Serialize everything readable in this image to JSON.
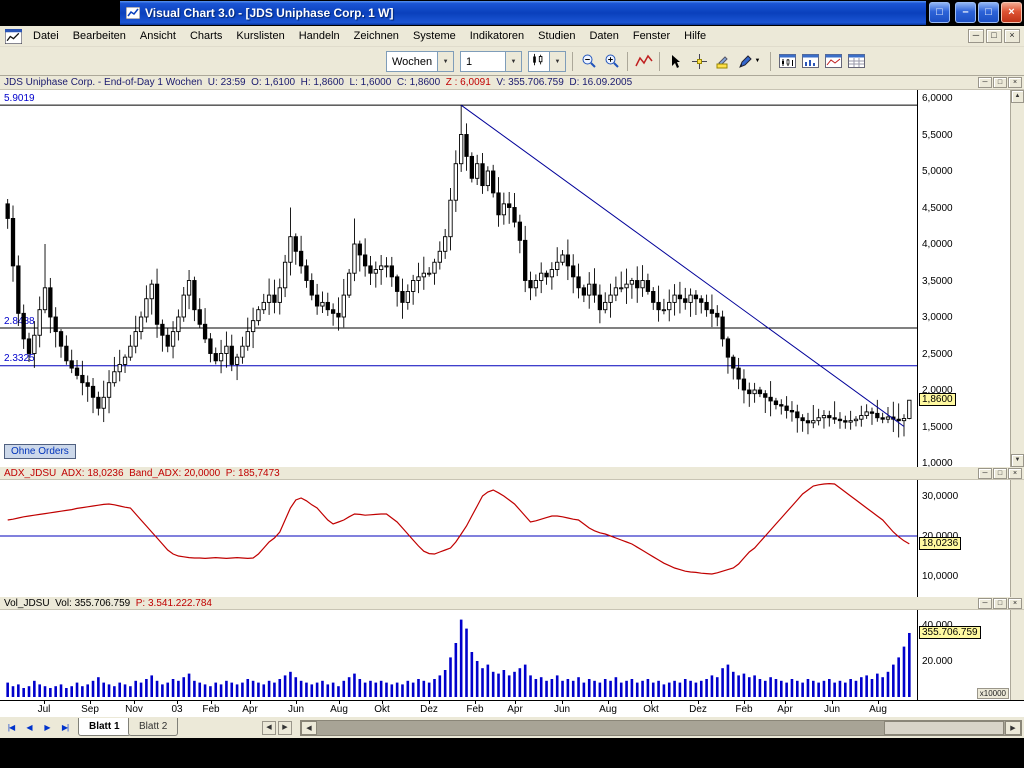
{
  "window": {
    "title": "Visual Chart  3.0 - [JDS Uniphase Corp. 1 W]"
  },
  "icons": {
    "min": "–",
    "max": "□",
    "close": "×",
    "restore": "□",
    "mdi_min": "─",
    "mdi_restore": "□",
    "mdi_close": "×",
    "mini_min": "─",
    "mini_max": "□",
    "mini_close": "×",
    "nav_first": "|◀",
    "nav_prev": "◀",
    "nav_next": "▶",
    "nav_last": "▶|",
    "up": "▲",
    "down": "▼",
    "left": "◀",
    "right": "▶",
    "combo_arrow": "▼"
  },
  "menu": {
    "items": [
      "Datei",
      "Bearbeiten",
      "Ansicht",
      "Charts",
      "Kurslisten",
      "Handeln",
      "Zeichnen",
      "Systeme",
      "Indikatoren",
      "Studien",
      "Daten",
      "Fenster",
      "Hilfe"
    ]
  },
  "toolbar": {
    "period": "Wochen",
    "compression": "1"
  },
  "chart": {
    "info_pre": "JDS Uniphase Corp. - End-of-Day 1 Wochen  U: 23:59  O: 1,6100  H: 1,8600  L: 1,6000  C: 1,8600  ",
    "info_z": "Z : 6,0091",
    "info_post": "  V: 355.706.759  D: 16.09.2005",
    "price_axis": [
      "6,0000",
      "5,5000",
      "5,0000",
      "4,5000",
      "4,0000",
      "3,5000",
      "3,0000",
      "2,5000",
      "2,0000",
      "1,5000",
      "1,0000"
    ],
    "price_tag": "1,8600",
    "level_labels": [
      "5.9019",
      "2.8488",
      "2.3325"
    ],
    "no_orders": "Ohne Orders",
    "adx_header": "ADX_JDSU  ADX: 18,0236  Band_ADX: 20,0000  P: 185,7473",
    "adx_axis": [
      "30,0000",
      "20,0000",
      "10,0000"
    ],
    "adx_tag": "18,0236",
    "vol_header": "Vol_JDSU  Vol: 355.706.759  ",
    "vol_header_p": "P: 3.541.222.784",
    "vol_axis": [
      "40.000",
      "20.000"
    ],
    "vol_tag": "355.706.759",
    "vol_multiplier": "x10000"
  },
  "tabs": [
    {
      "label": "Blatt 1"
    },
    {
      "label": "Blatt 2"
    }
  ],
  "colors": {
    "candle": "#000000",
    "trend": "#000099",
    "level_blue": "#0000bb",
    "adx_line": "#c00000",
    "adx_band": "#0000bb",
    "volume": "#0000cc",
    "tag_bg": "#fff9a0"
  },
  "chart_data": {
    "type": "candlestick",
    "title": "JDS Uniphase Corp. - End-of-Day 1 Wochen",
    "x_range": "Jun 2002 - Sep 2005",
    "price": {
      "ylim": [
        1.0,
        6.0
      ],
      "last": 1.86,
      "open": 1.61,
      "high": 1.86,
      "low": 1.6,
      "levels": [
        {
          "value": 5.9019,
          "color": "#000000"
        },
        {
          "value": 2.8488,
          "color": "#000000"
        },
        {
          "value": 2.3325,
          "color": "#0000bb"
        }
      ],
      "trendline": {
        "from_index": 85,
        "from_value": 5.9019,
        "to_index": 168,
        "to_value": 1.5
      },
      "closes": [
        4.35,
        3.7,
        3.05,
        2.7,
        2.5,
        2.75,
        3.1,
        3.4,
        3.0,
        2.8,
        2.6,
        2.4,
        2.3,
        2.2,
        2.1,
        2.05,
        1.9,
        1.75,
        1.9,
        2.1,
        2.25,
        2.35,
        2.45,
        2.6,
        2.8,
        3.0,
        3.25,
        3.45,
        2.9,
        2.75,
        2.6,
        2.8,
        3.0,
        3.3,
        3.5,
        3.1,
        2.9,
        2.7,
        2.5,
        2.4,
        2.5,
        2.6,
        2.35,
        2.45,
        2.6,
        2.8,
        2.95,
        3.1,
        3.2,
        3.3,
        3.2,
        3.4,
        3.75,
        4.1,
        3.9,
        3.7,
        3.5,
        3.3,
        3.15,
        3.2,
        3.1,
        3.05,
        3.0,
        3.3,
        3.6,
        4.0,
        3.85,
        3.7,
        3.6,
        3.65,
        3.7,
        3.7,
        3.55,
        3.35,
        3.2,
        3.35,
        3.5,
        3.55,
        3.6,
        3.6,
        3.75,
        3.9,
        4.1,
        4.6,
        5.1,
        5.5,
        5.2,
        4.9,
        5.1,
        4.8,
        5.0,
        4.7,
        4.4,
        4.55,
        4.5,
        4.3,
        4.05,
        3.5,
        3.4,
        3.5,
        3.6,
        3.55,
        3.65,
        3.75,
        3.85,
        3.7,
        3.55,
        3.4,
        3.3,
        3.45,
        3.3,
        3.1,
        3.2,
        3.3,
        3.4,
        3.4,
        3.45,
        3.5,
        3.4,
        3.5,
        3.35,
        3.2,
        3.1,
        3.1,
        3.2,
        3.3,
        3.25,
        3.2,
        3.3,
        3.25,
        3.2,
        3.1,
        3.05,
        3.0,
        2.7,
        2.45,
        2.3,
        2.15,
        2.0,
        1.95,
        2.0,
        1.95,
        1.9,
        1.85,
        1.8,
        1.78,
        1.72,
        1.7,
        1.62,
        1.58,
        1.55,
        1.58,
        1.62,
        1.65,
        1.62,
        1.6,
        1.58,
        1.56,
        1.58,
        1.6,
        1.65,
        1.7,
        1.68,
        1.62,
        1.6,
        1.63,
        1.6,
        1.58,
        1.61,
        1.86
      ]
    },
    "adx": {
      "band": 20.0,
      "last": 18.0236,
      "ylim": [
        10,
        30
      ],
      "values": [
        24.0,
        24.2,
        24.5,
        24.8,
        25.0,
        25.2,
        25.4,
        25.6,
        25.8,
        26.0,
        26.2,
        26.4,
        26.6,
        26.9,
        27.1,
        27.3,
        27.5,
        27.7,
        27.9,
        28.0,
        27.8,
        27.5,
        27.2,
        27.0,
        25.5,
        24.0,
        22.5,
        21.0,
        19.5,
        18.0,
        16.5,
        15.5,
        15.0,
        14.8,
        14.6,
        14.5,
        14.5,
        14.4,
        14.5,
        14.6,
        14.5,
        14.4,
        14.5,
        14.6,
        14.5,
        14.4,
        14.5,
        15.5,
        17.0,
        18.5,
        19.5,
        21.0,
        24.0,
        27.0,
        29.0,
        29.5,
        28.8,
        27.8,
        27.0,
        25.5,
        24.0,
        23.0,
        23.5,
        24.0,
        24.8,
        25.5,
        25.4,
        25.2,
        25.3,
        25.4,
        25.5,
        25.5,
        24.5,
        23.5,
        22.0,
        20.5,
        19.0,
        17.5,
        16.2,
        15.6,
        15.5,
        16.0,
        16.5,
        17.0,
        18.5,
        20.5,
        22.5,
        25.0,
        27.5,
        30.0,
        31.0,
        31.5,
        30.8,
        30.0,
        29.0,
        28.0,
        26.5,
        25.0,
        23.5,
        23.8,
        24.2,
        24.6,
        25.0,
        25.0,
        24.8,
        24.5,
        24.2,
        24.0,
        23.0,
        22.0,
        21.3,
        20.8,
        20.5,
        20.0,
        19.5,
        19.0,
        18.5,
        18.0,
        17.2,
        16.4,
        15.6,
        14.8,
        14.0,
        13.2,
        12.6,
        12.0,
        11.6,
        11.2,
        11.0,
        10.9,
        10.7,
        10.6,
        10.5,
        10.8,
        11.2,
        11.6,
        12.0,
        13.0,
        14.5,
        16.0,
        17.0,
        18.5,
        20.0,
        21.5,
        23.0,
        24.5,
        26.0,
        27.5,
        29.0,
        30.5,
        31.5,
        32.5,
        32.8,
        33.0,
        33.1,
        33.0,
        32.0,
        31.0,
        30.0,
        29.0,
        28.0,
        27.0,
        26.0,
        25.0,
        24.0,
        22.5,
        21.0,
        19.8,
        18.8,
        18.02
      ]
    },
    "volume": {
      "unit": "x10000",
      "last": 35.57,
      "ylim": [
        0,
        40
      ],
      "values": [
        8,
        6,
        7,
        5,
        6,
        9,
        7,
        6,
        5,
        6,
        7,
        5,
        6,
        8,
        6,
        7,
        9,
        11,
        8,
        7,
        6,
        8,
        7,
        6,
        9,
        8,
        10,
        12,
        9,
        7,
        8,
        10,
        9,
        11,
        13,
        9,
        8,
        7,
        6,
        8,
        7,
        9,
        8,
        7,
        8,
        10,
        9,
        8,
        7,
        9,
        8,
        10,
        12,
        14,
        11,
        9,
        8,
        7,
        8,
        9,
        7,
        8,
        6,
        9,
        11,
        13,
        10,
        8,
        9,
        8,
        9,
        8,
        7,
        8,
        7,
        9,
        8,
        10,
        9,
        8,
        10,
        12,
        15,
        22,
        30,
        43,
        38,
        25,
        20,
        16,
        18,
        14,
        13,
        15,
        12,
        14,
        16,
        18,
        12,
        10,
        11,
        9,
        10,
        12,
        9,
        10,
        9,
        11,
        8,
        10,
        9,
        8,
        10,
        9,
        11,
        8,
        9,
        10,
        8,
        9,
        10,
        8,
        9,
        7,
        8,
        9,
        8,
        10,
        9,
        8,
        9,
        10,
        12,
        11,
        16,
        18,
        14,
        12,
        13,
        11,
        12,
        10,
        9,
        11,
        10,
        9,
        8,
        10,
        9,
        8,
        10,
        9,
        8,
        9,
        10,
        8,
        9,
        8,
        10,
        9,
        11,
        12,
        10,
        13,
        11,
        14,
        18,
        22,
        28,
        35.57
      ]
    },
    "xaxis": {
      "labels": [
        {
          "t": "Jul",
          "x": 44
        },
        {
          "t": "Sep",
          "x": 90
        },
        {
          "t": "Nov",
          "x": 134
        },
        {
          "t": "03",
          "x": 177
        },
        {
          "t": "Feb",
          "x": 211
        },
        {
          "t": "Apr",
          "x": 250
        },
        {
          "t": "Jun",
          "x": 296
        },
        {
          "t": "Aug",
          "x": 339
        },
        {
          "t": "Okt",
          "x": 382
        },
        {
          "t": "Dez",
          "x": 429
        },
        {
          "t": "Feb",
          "x": 475
        },
        {
          "t": "Apr",
          "x": 515
        },
        {
          "t": "Jun",
          "x": 562
        },
        {
          "t": "Aug",
          "x": 608
        },
        {
          "t": "Okt",
          "x": 651
        },
        {
          "t": "Dez",
          "x": 698
        },
        {
          "t": "Feb",
          "x": 744
        },
        {
          "t": "Apr",
          "x": 785
        },
        {
          "t": "Jun",
          "x": 832
        },
        {
          "t": "Aug",
          "x": 878
        }
      ]
    }
  }
}
